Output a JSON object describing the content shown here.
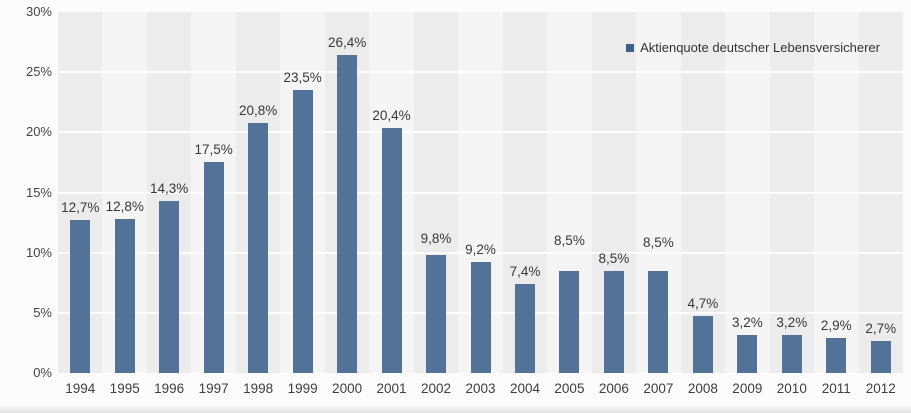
{
  "page": {
    "background_color": "#fcfcfc"
  },
  "legend": {
    "label": "Aktienquote deutscher Lebensversicherer",
    "marker_color": "#3e6189"
  },
  "chart_data": {
    "type": "bar",
    "title": "",
    "xlabel": "",
    "ylabel": "",
    "categories": [
      "1994",
      "1995",
      "1996",
      "1997",
      "1998",
      "1999",
      "2000",
      "2001",
      "2002",
      "2003",
      "2004",
      "2005",
      "2006",
      "2007",
      "2008",
      "2009",
      "2010",
      "2011",
      "2012"
    ],
    "values": [
      12.7,
      12.8,
      14.3,
      17.5,
      20.8,
      23.5,
      26.4,
      20.4,
      9.8,
      9.2,
      7.4,
      8.5,
      8.5,
      8.5,
      4.7,
      3.2,
      3.2,
      2.9,
      2.7
    ],
    "value_labels": [
      "12,7%",
      "12,8%",
      "14,3%",
      "17,5%",
      "20,8%",
      "23,5%",
      "26,4%",
      "20,4%",
      "9,8%",
      "9,2%",
      "7,4%",
      "8,5%",
      "8,5%",
      "8,5%",
      "4,7%",
      "3,2%",
      "3,2%",
      "2,9%",
      "2,7%"
    ],
    "y_ticks": [
      0,
      5,
      10,
      15,
      20,
      25,
      30
    ],
    "y_tick_labels": [
      "0%",
      "5%",
      "10%",
      "15%",
      "20%",
      "25%",
      "30%"
    ],
    "ylim": [
      0,
      30
    ],
    "grid": true,
    "legend_position": "top-right",
    "legend_entries": [
      "Aktienquote deutscher Lebensversicherer"
    ],
    "bar_color": "#527397",
    "band_color_even": "#ececec",
    "band_color_odd": "#f5f5f5",
    "gridline_color": "#ffffff",
    "label_raise": [
      0,
      0,
      0,
      0,
      0,
      0,
      0,
      0,
      4,
      0,
      0,
      18,
      0,
      16,
      0,
      0,
      0,
      0,
      0
    ]
  }
}
